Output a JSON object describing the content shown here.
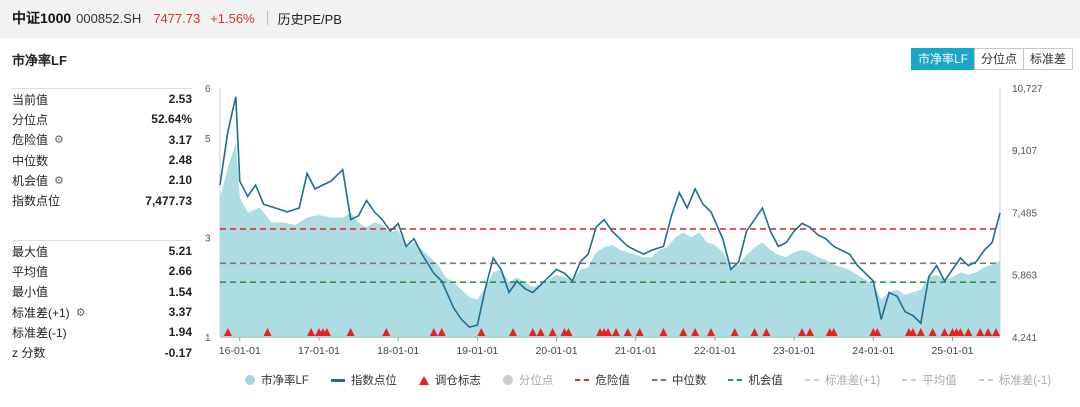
{
  "header": {
    "name": "中证1000",
    "code": "000852.SH",
    "price": "7477.73",
    "change": "+1.56%",
    "tab_title": "历史PE/PB"
  },
  "panel": {
    "title": "市净率LF",
    "buttons": [
      {
        "label": "市净率LF",
        "active": true
      },
      {
        "label": "分位点",
        "active": false
      },
      {
        "label": "标准差",
        "active": false
      }
    ]
  },
  "stats_top": [
    {
      "label": "当前值",
      "value": "2.53",
      "gear": false
    },
    {
      "label": "分位点",
      "value": "52.64%",
      "gear": false
    },
    {
      "label": "危险值",
      "value": "3.17",
      "gear": true
    },
    {
      "label": "中位数",
      "value": "2.48",
      "gear": false
    },
    {
      "label": "机会值",
      "value": "2.10",
      "gear": true
    },
    {
      "label": "指数点位",
      "value": "7,477.73",
      "gear": false
    }
  ],
  "stats_bottom": [
    {
      "label": "最大值",
      "value": "5.21",
      "gear": false
    },
    {
      "label": "平均值",
      "value": "2.66",
      "gear": false
    },
    {
      "label": "最小值",
      "value": "1.54",
      "gear": false
    },
    {
      "label": "标准差(+1)",
      "value": "3.37",
      "gear": true
    },
    {
      "label": "标准差(-1)",
      "value": "1.94",
      "gear": false
    },
    {
      "label": "z 分数",
      "value": "-0.17",
      "gear": false
    }
  ],
  "colors": {
    "area": "#9fd7de",
    "index_line": "#1a6f92",
    "danger": "#d9302a",
    "median": "#777777",
    "opportunity": "#2a9a4a",
    "marker": "#e8201f",
    "accent": "#1aa6c6"
  },
  "chart_data": {
    "type": "area",
    "x_ticks": [
      "16-01-01",
      "17-01-01",
      "18-01-01",
      "19-01-01",
      "20-01-01",
      "21-01-01",
      "22-01-01",
      "23-01-01",
      "24-01-01",
      "25-01-01"
    ],
    "y_left_ticks": [
      "1",
      "3",
      "5",
      "6"
    ],
    "y_right_ticks": [
      "4,241",
      "5,863",
      "7,485",
      "9,107",
      "10,727"
    ],
    "ylim_left": [
      1,
      6
    ],
    "ylim_right": [
      4241,
      10727
    ],
    "x_range": [
      2015.75,
      2025.6
    ],
    "reference_lines": {
      "danger": 3.17,
      "median": 2.48,
      "opportunity": 2.1
    },
    "series_pb": [
      [
        2015.75,
        3.8
      ],
      [
        2015.85,
        4.4
      ],
      [
        2015.95,
        4.9
      ],
      [
        2016.0,
        3.8
      ],
      [
        2016.1,
        3.5
      ],
      [
        2016.25,
        3.6
      ],
      [
        2016.4,
        3.3
      ],
      [
        2016.55,
        3.3
      ],
      [
        2016.7,
        3.25
      ],
      [
        2016.85,
        3.4
      ],
      [
        2017.0,
        3.45
      ],
      [
        2017.15,
        3.4
      ],
      [
        2017.3,
        3.4
      ],
      [
        2017.4,
        3.5
      ],
      [
        2017.5,
        3.3
      ],
      [
        2017.6,
        3.2
      ],
      [
        2017.7,
        3.3
      ],
      [
        2017.8,
        3.25
      ],
      [
        2017.9,
        3.1
      ],
      [
        2018.0,
        3.15
      ],
      [
        2018.1,
        2.8
      ],
      [
        2018.2,
        2.9
      ],
      [
        2018.3,
        2.75
      ],
      [
        2018.4,
        2.6
      ],
      [
        2018.5,
        2.45
      ],
      [
        2018.6,
        2.2
      ],
      [
        2018.7,
        2.1
      ],
      [
        2018.8,
        1.95
      ],
      [
        2018.9,
        1.8
      ],
      [
        2019.0,
        1.75
      ],
      [
        2019.1,
        2.0
      ],
      [
        2019.2,
        2.3
      ],
      [
        2019.3,
        2.35
      ],
      [
        2019.4,
        2.1
      ],
      [
        2019.5,
        2.2
      ],
      [
        2019.6,
        2.1
      ],
      [
        2019.7,
        2.0
      ],
      [
        2019.8,
        2.05
      ],
      [
        2019.9,
        2.15
      ],
      [
        2020.0,
        2.25
      ],
      [
        2020.1,
        2.2
      ],
      [
        2020.2,
        2.15
      ],
      [
        2020.3,
        2.35
      ],
      [
        2020.4,
        2.4
      ],
      [
        2020.5,
        2.7
      ],
      [
        2020.6,
        2.8
      ],
      [
        2020.7,
        2.85
      ],
      [
        2020.8,
        2.75
      ],
      [
        2020.9,
        2.7
      ],
      [
        2021.0,
        2.65
      ],
      [
        2021.1,
        2.6
      ],
      [
        2021.2,
        2.6
      ],
      [
        2021.3,
        2.75
      ],
      [
        2021.4,
        2.8
      ],
      [
        2021.5,
        3.0
      ],
      [
        2021.6,
        3.1
      ],
      [
        2021.7,
        3.0
      ],
      [
        2021.8,
        3.1
      ],
      [
        2021.9,
        2.9
      ],
      [
        2022.0,
        2.85
      ],
      [
        2022.1,
        2.7
      ],
      [
        2022.2,
        2.4
      ],
      [
        2022.3,
        2.45
      ],
      [
        2022.4,
        2.65
      ],
      [
        2022.5,
        2.8
      ],
      [
        2022.6,
        2.9
      ],
      [
        2022.7,
        2.75
      ],
      [
        2022.8,
        2.65
      ],
      [
        2022.9,
        2.6
      ],
      [
        2023.0,
        2.7
      ],
      [
        2023.1,
        2.75
      ],
      [
        2023.2,
        2.7
      ],
      [
        2023.3,
        2.6
      ],
      [
        2023.4,
        2.55
      ],
      [
        2023.5,
        2.45
      ],
      [
        2023.6,
        2.4
      ],
      [
        2023.7,
        2.35
      ],
      [
        2023.8,
        2.25
      ],
      [
        2023.9,
        2.15
      ],
      [
        2024.0,
        2.05
      ],
      [
        2024.1,
        1.75
      ],
      [
        2024.2,
        1.9
      ],
      [
        2024.3,
        1.95
      ],
      [
        2024.4,
        1.85
      ],
      [
        2024.5,
        1.9
      ],
      [
        2024.6,
        1.95
      ],
      [
        2024.7,
        2.2
      ],
      [
        2024.8,
        2.25
      ],
      [
        2024.9,
        2.15
      ],
      [
        2025.0,
        2.2
      ],
      [
        2025.1,
        2.3
      ],
      [
        2025.2,
        2.25
      ],
      [
        2025.3,
        2.3
      ],
      [
        2025.4,
        2.4
      ],
      [
        2025.5,
        2.45
      ],
      [
        2025.6,
        2.53
      ]
    ],
    "series_index": [
      [
        2015.75,
        8200
      ],
      [
        2015.85,
        9600
      ],
      [
        2015.95,
        10500
      ],
      [
        2016.0,
        8300
      ],
      [
        2016.1,
        7900
      ],
      [
        2016.2,
        8200
      ],
      [
        2016.3,
        7700
      ],
      [
        2016.45,
        7600
      ],
      [
        2016.6,
        7500
      ],
      [
        2016.75,
        7600
      ],
      [
        2016.85,
        8500
      ],
      [
        2016.95,
        8100
      ],
      [
        2017.05,
        8200
      ],
      [
        2017.15,
        8300
      ],
      [
        2017.3,
        8600
      ],
      [
        2017.4,
        7300
      ],
      [
        2017.5,
        7400
      ],
      [
        2017.6,
        7800
      ],
      [
        2017.7,
        7500
      ],
      [
        2017.8,
        7300
      ],
      [
        2017.9,
        7000
      ],
      [
        2018.0,
        7200
      ],
      [
        2018.1,
        6600
      ],
      [
        2018.2,
        6800
      ],
      [
        2018.3,
        6400
      ],
      [
        2018.45,
        5900
      ],
      [
        2018.55,
        5700
      ],
      [
        2018.7,
        5000
      ],
      [
        2018.8,
        4700
      ],
      [
        2018.9,
        4500
      ],
      [
        2019.0,
        4550
      ],
      [
        2019.1,
        5500
      ],
      [
        2019.2,
        6300
      ],
      [
        2019.3,
        6000
      ],
      [
        2019.4,
        5400
      ],
      [
        2019.5,
        5700
      ],
      [
        2019.6,
        5500
      ],
      [
        2019.7,
        5400
      ],
      [
        2019.8,
        5600
      ],
      [
        2019.9,
        5800
      ],
      [
        2020.0,
        6000
      ],
      [
        2020.1,
        5900
      ],
      [
        2020.2,
        5700
      ],
      [
        2020.3,
        6200
      ],
      [
        2020.4,
        6400
      ],
      [
        2020.5,
        7100
      ],
      [
        2020.6,
        7300
      ],
      [
        2020.7,
        7000
      ],
      [
        2020.8,
        6800
      ],
      [
        2020.9,
        6600
      ],
      [
        2021.0,
        6500
      ],
      [
        2021.1,
        6400
      ],
      [
        2021.2,
        6500
      ],
      [
        2021.35,
        6600
      ],
      [
        2021.45,
        7400
      ],
      [
        2021.55,
        8000
      ],
      [
        2021.65,
        7600
      ],
      [
        2021.75,
        8100
      ],
      [
        2021.85,
        7700
      ],
      [
        2021.95,
        7500
      ],
      [
        2022.1,
        6800
      ],
      [
        2022.2,
        6000
      ],
      [
        2022.3,
        6200
      ],
      [
        2022.4,
        7000
      ],
      [
        2022.5,
        7300
      ],
      [
        2022.6,
        7600
      ],
      [
        2022.7,
        7000
      ],
      [
        2022.8,
        6600
      ],
      [
        2022.9,
        6700
      ],
      [
        2023.0,
        7000
      ],
      [
        2023.1,
        7200
      ],
      [
        2023.2,
        7100
      ],
      [
        2023.3,
        6900
      ],
      [
        2023.4,
        6800
      ],
      [
        2023.5,
        6600
      ],
      [
        2023.6,
        6500
      ],
      [
        2023.7,
        6400
      ],
      [
        2023.8,
        6100
      ],
      [
        2023.9,
        5900
      ],
      [
        2024.0,
        5700
      ],
      [
        2024.1,
        4700
      ],
      [
        2024.2,
        5400
      ],
      [
        2024.3,
        5300
      ],
      [
        2024.4,
        4900
      ],
      [
        2024.5,
        4800
      ],
      [
        2024.6,
        4600
      ],
      [
        2024.7,
        5800
      ],
      [
        2024.8,
        6100
      ],
      [
        2024.9,
        5700
      ],
      [
        2025.0,
        6000
      ],
      [
        2025.1,
        6300
      ],
      [
        2025.2,
        6100
      ],
      [
        2025.3,
        6200
      ],
      [
        2025.4,
        6500
      ],
      [
        2025.5,
        6700
      ],
      [
        2025.6,
        7477
      ]
    ],
    "rebalance_marks": [
      2015.85,
      2016.35,
      2016.9,
      2017.0,
      2017.05,
      2017.1,
      2017.4,
      2017.85,
      2018.45,
      2018.55,
      2019.05,
      2019.45,
      2019.7,
      2019.8,
      2019.95,
      2020.1,
      2020.15,
      2020.55,
      2020.6,
      2020.65,
      2020.75,
      2020.9,
      2021.05,
      2021.35,
      2021.6,
      2021.75,
      2021.95,
      2022.25,
      2022.5,
      2022.65,
      2023.1,
      2023.2,
      2023.45,
      2023.5,
      2024.0,
      2024.05,
      2024.45,
      2024.5,
      2024.6,
      2024.75,
      2024.9,
      2025.0,
      2025.05,
      2025.1,
      2025.2,
      2025.35,
      2025.45,
      2025.55
    ]
  },
  "legend": [
    {
      "label": "市净率LF",
      "kind": "dot",
      "color": "#9fd7de",
      "dim": false
    },
    {
      "label": "指数点位",
      "kind": "line",
      "color": "#1a6f92",
      "dim": false
    },
    {
      "label": "调仓标志",
      "kind": "triangle",
      "color": "#e8201f",
      "dim": false
    },
    {
      "label": "分位点",
      "kind": "dot",
      "color": "#cccccc",
      "dim": true
    },
    {
      "label": "危险值",
      "kind": "dash",
      "color": "#d9302a",
      "dim": false
    },
    {
      "label": "中位数",
      "kind": "dash",
      "color": "#777777",
      "dim": false
    },
    {
      "label": "机会值",
      "kind": "dash",
      "color": "#2a9a4a",
      "dim": false
    },
    {
      "label": "标准差(+1)",
      "kind": "dash",
      "color": "#cccccc",
      "dim": true
    },
    {
      "label": "平均值",
      "kind": "dash",
      "color": "#cccccc",
      "dim": true
    },
    {
      "label": "标准差(-1)",
      "kind": "dash",
      "color": "#cccccc",
      "dim": true
    }
  ]
}
